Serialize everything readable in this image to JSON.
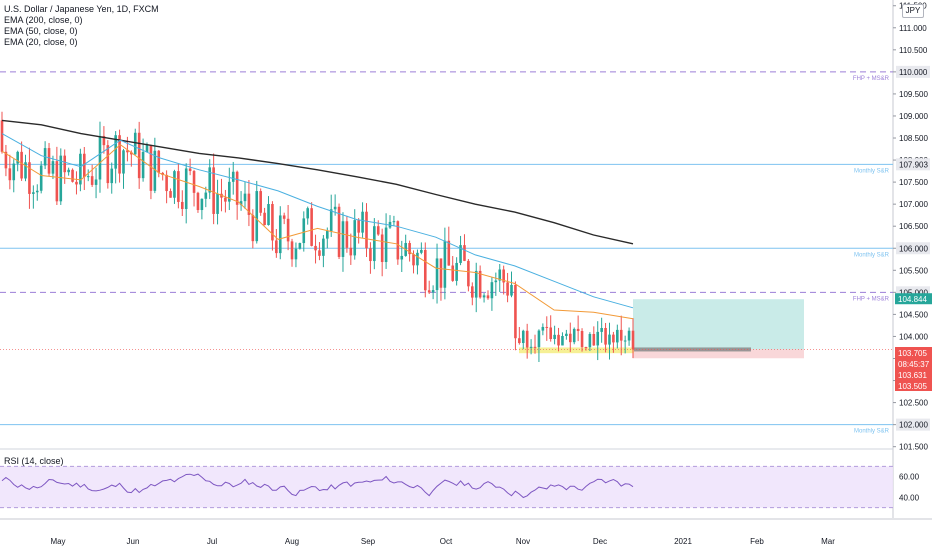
{
  "header": {
    "title": "U.S. Dollar / Japanese Yen, 1D, FXCM",
    "indicators": [
      "EMA (200, close, 0)",
      "EMA (50, close, 0)",
      "EMA (20, close, 0)"
    ],
    "currency": "JPY"
  },
  "rsi": {
    "label": "RSI (14, close)",
    "ticks": [
      "60.00",
      "40.00"
    ],
    "upper_band": 70,
    "lower_band": 30
  },
  "chart_data": {
    "type": "line",
    "symbol": "USDJPY",
    "timeframe": "1D",
    "x_axis_labels": [
      "May",
      "Jun",
      "Jul",
      "Aug",
      "Sep",
      "Oct",
      "Nov",
      "Dec",
      "2021",
      "Feb",
      "Mar"
    ],
    "y_ticks": [
      "111.500",
      "111.000",
      "110.500",
      "110.000",
      "109.500",
      "109.000",
      "108.500",
      "108.000",
      "107.500",
      "107.000",
      "106.500",
      "106.000",
      "105.500",
      "105.000",
      "104.500",
      "104.000",
      "103.500",
      "103.000",
      "102.500",
      "102.000",
      "101.500"
    ],
    "ylim": [
      101.5,
      111.5
    ],
    "levels": [
      {
        "price": 110.0,
        "label": "FHP + MS&R",
        "badge": "110.000",
        "style": "dashed",
        "color": "#9c7fd8"
      },
      {
        "price": 107.903,
        "label": "Monthly S&R",
        "badge": "107.903",
        "style": "solid",
        "color": "#7ec3f0"
      },
      {
        "price": 106.0,
        "label": "Monthly S&R",
        "badge": "106.000",
        "style": "solid",
        "color": "#7ec3f0"
      },
      {
        "price": 105.0,
        "label": "FHP + MS&R",
        "badge": "105.000",
        "style": "dashed",
        "color": "#9c7fd8"
      },
      {
        "price": 102.0,
        "label": "Monthly S&R",
        "badge": "102.000",
        "style": "solid",
        "color": "#7ec3f0"
      }
    ],
    "price_labels": [
      {
        "text": "104.844",
        "price": 104.844,
        "color": "#26a69a"
      },
      {
        "text": "103.705",
        "price": 103.705,
        "color": "#ef5350"
      },
      {
        "text": "08:45:37",
        "price": 103.68,
        "color": "#ef5350"
      },
      {
        "text": "103.631",
        "price": 103.631,
        "color": "#ef5350"
      },
      {
        "text": "103.505",
        "price": 103.505,
        "color": "#ef5350"
      }
    ],
    "series": [
      {
        "name": "EMA (200, close, 0)",
        "color": "#2a2a2a",
        "values": [
          108.9,
          108.8,
          108.6,
          108.45,
          108.3,
          108.15,
          108.05,
          107.92,
          107.78,
          107.62,
          107.45,
          107.22,
          107.0,
          106.82,
          106.58,
          106.3,
          106.1
        ]
      },
      {
        "name": "EMA (50, close, 0)",
        "color": "#4ab0e0",
        "values": [
          108.6,
          108.1,
          107.85,
          108.45,
          108.05,
          107.78,
          107.55,
          107.3,
          106.95,
          106.65,
          106.5,
          106.25,
          105.85,
          105.6,
          105.25,
          104.9,
          104.65
        ]
      },
      {
        "name": "EMA (20, close, 0)",
        "color": "#f29a38",
        "values": [
          108.2,
          107.65,
          107.55,
          108.35,
          107.7,
          107.4,
          107.05,
          106.2,
          106.45,
          106.25,
          106.1,
          105.55,
          105.45,
          105.2,
          104.6,
          104.55,
          104.4
        ]
      }
    ],
    "position_tool": {
      "entry": 103.705,
      "target": 104.844,
      "stop": 103.505
    },
    "support_zone": {
      "top": 103.75,
      "bottom": 103.62
    }
  }
}
